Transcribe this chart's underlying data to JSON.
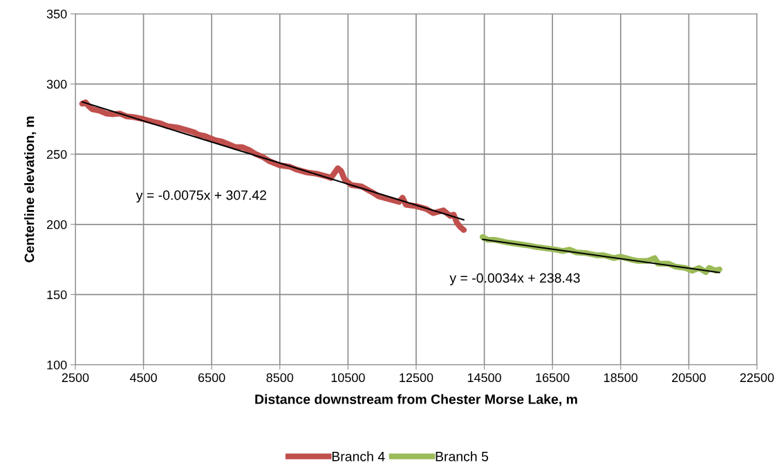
{
  "chart_data": {
    "type": "line",
    "xlabel": "Distance downstream from Chester Morse Lake, m",
    "ylabel": "Centerline elevation, m",
    "xlim": [
      2500,
      22500
    ],
    "xticks": [
      2500,
      4500,
      6500,
      8500,
      10500,
      12500,
      14500,
      16500,
      18500,
      20500,
      22500
    ],
    "ylim": [
      100,
      350
    ],
    "yticks": [
      100,
      150,
      200,
      250,
      300,
      350
    ],
    "grid": true,
    "legend": "bottom",
    "marker": "none",
    "line_style": "solid",
    "series": [
      {
        "name": "Branch 4",
        "color": "#c0504d",
        "x": [
          2700,
          2800,
          2900,
          3000,
          3200,
          3400,
          3600,
          3800,
          4000,
          4200,
          4500,
          4800,
          5000,
          5200,
          5500,
          5800,
          6000,
          6100,
          6300,
          6600,
          6800,
          7000,
          7200,
          7400,
          7600,
          7800,
          8000,
          8200,
          8500,
          8800,
          9000,
          9300,
          9600,
          9900,
          10000,
          10200,
          10300,
          10400,
          10600,
          10900,
          11200,
          11400,
          11700,
          12000,
          12100,
          12200,
          12500,
          12800,
          13000,
          13300,
          13500,
          13600,
          13700,
          13800,
          13900
        ],
        "values": [
          286,
          287,
          284,
          282,
          281,
          279,
          278.5,
          279,
          277,
          276.5,
          275,
          273,
          272,
          270,
          269,
          267,
          265.5,
          264,
          263,
          260,
          259,
          257,
          255,
          255,
          253,
          250,
          248,
          245,
          242,
          241,
          239,
          237,
          236,
          234,
          233,
          240,
          238,
          232,
          228,
          227,
          223,
          220,
          218,
          216,
          219,
          214,
          213,
          211,
          208,
          210,
          206,
          207,
          201,
          198,
          196
        ]
      },
      {
        "name": "Branch 5",
        "color": "#9bbb59",
        "x": [
          14450,
          14600,
          14800,
          15000,
          15200,
          15500,
          15800,
          16000,
          16300,
          16600,
          16800,
          17000,
          17200,
          17500,
          17800,
          18000,
          18300,
          18500,
          18800,
          19000,
          19300,
          19500,
          19600,
          19900,
          20100,
          20400,
          20600,
          20800,
          21000,
          21100,
          21300,
          21400
        ],
        "values": [
          191,
          189,
          189,
          188,
          187,
          186,
          185,
          184,
          183,
          182,
          181,
          182,
          180,
          179.5,
          178,
          178,
          176,
          177,
          175,
          174,
          174,
          176,
          172,
          172,
          170,
          169,
          167,
          169,
          166,
          169,
          167,
          168
        ]
      },
      {
        "type": "line",
        "color": "#000000",
        "x": [
          2700,
          13900
        ],
        "values": [
          287.2,
          203.2
        ]
      },
      {
        "type": "line",
        "color": "#000000",
        "x": [
          14450,
          21400
        ],
        "values": [
          189.3,
          165.7
        ]
      }
    ],
    "annotations": [
      "y = -0.0075x + 307.42",
      "y = -0.0034x + 238.43"
    ]
  }
}
